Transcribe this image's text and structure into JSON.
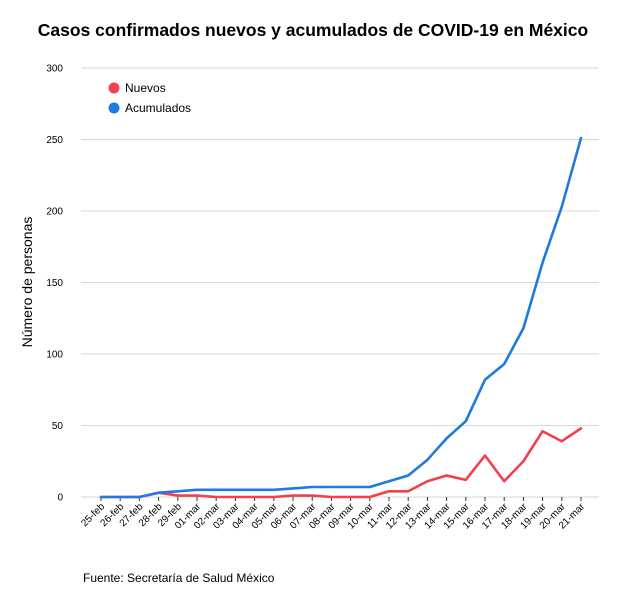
{
  "chart_data": {
    "type": "line",
    "title": "Casos confirmados nuevos y acumulados de COVID-19 en México",
    "ylabel": "Número de personas",
    "xlabel": "",
    "source": "Fuente: Secretaría de Salud México",
    "ylim": [
      0,
      300
    ],
    "yticks": [
      0,
      50,
      100,
      150,
      200,
      250,
      300
    ],
    "grid": true,
    "legend_position": "top-left",
    "categories": [
      "25-feb",
      "26-feb",
      "27-feb",
      "28-feb",
      "29-feb",
      "01-mar",
      "02-mar",
      "03-mar",
      "04-mar",
      "05-mar",
      "06-mar",
      "07-mar",
      "08-mar",
      "09-mar",
      "10-mar",
      "11-mar",
      "12-mar",
      "13-mar",
      "14-mar",
      "15-mar",
      "16-mar",
      "17-mar",
      "18-mar",
      "19-mar",
      "20-mar",
      "21-mar"
    ],
    "series": [
      {
        "name": "Nuevos",
        "color": "#f2404c",
        "values": [
          0,
          0,
          0,
          3,
          1,
          1,
          0,
          0,
          0,
          0,
          1,
          1,
          0,
          0,
          0,
          4,
          4,
          11,
          15,
          12,
          29,
          11,
          25,
          46,
          39,
          48
        ]
      },
      {
        "name": "Acumulados",
        "color": "#1f7ae0",
        "values": [
          0,
          0,
          0,
          3,
          4,
          5,
          5,
          5,
          5,
          5,
          6,
          7,
          7,
          7,
          7,
          11,
          15,
          26,
          41,
          53,
          82,
          93,
          118,
          164,
          203,
          251
        ]
      }
    ]
  }
}
